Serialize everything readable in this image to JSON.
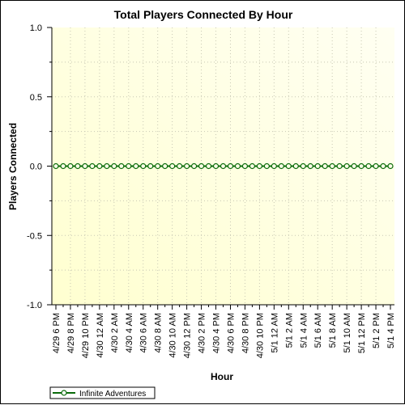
{
  "chart_data": {
    "type": "line",
    "title": "Total Players Connected By Hour",
    "xlabel": "Hour",
    "ylabel": "Players Connected",
    "ylim": [
      -1.0,
      1.0
    ],
    "yticks": [
      "1.0",
      "0.5",
      "0.0",
      "-0.5",
      "-1.0"
    ],
    "ytick_values": [
      1.0,
      0.5,
      0.0,
      -0.5,
      -1.0
    ],
    "x_tick_labels": [
      "4/29 6 PM",
      "4/29 8 PM",
      "4/29 10 PM",
      "4/30 12 AM",
      "4/30 2 AM",
      "4/30 4 AM",
      "4/30 6 AM",
      "4/30 8 AM",
      "4/30 10 AM",
      "4/30 12 PM",
      "4/30 2 PM",
      "4/30 4 PM",
      "4/30 6 PM",
      "4/30 8 PM",
      "4/30 10 PM",
      "5/1 12 AM",
      "5/1 2 AM",
      "5/1 4 AM",
      "5/1 6 AM",
      "5/1 8 AM",
      "5/1 10 AM",
      "5/1 12 PM",
      "5/1 2 PM",
      "5/1 4 PM"
    ],
    "grid": true,
    "legend_position": "bottom-left",
    "background_color": "#ffffd8",
    "series": [
      {
        "name": "Infinite Adventures",
        "color": "#0a6b0a",
        "marker": "circle",
        "x": [
          "4/29 6 PM",
          "4/29 7 PM",
          "4/29 8 PM",
          "4/29 9 PM",
          "4/29 10 PM",
          "4/29 11 PM",
          "4/30 12 AM",
          "4/30 1 AM",
          "4/30 2 AM",
          "4/30 3 AM",
          "4/30 4 AM",
          "4/30 5 AM",
          "4/30 6 AM",
          "4/30 7 AM",
          "4/30 8 AM",
          "4/30 9 AM",
          "4/30 10 AM",
          "4/30 11 AM",
          "4/30 12 PM",
          "4/30 1 PM",
          "4/30 2 PM",
          "4/30 3 PM",
          "4/30 4 PM",
          "4/30 5 PM",
          "4/30 6 PM",
          "4/30 7 PM",
          "4/30 8 PM",
          "4/30 9 PM",
          "4/30 10 PM",
          "4/30 11 PM",
          "5/1 12 AM",
          "5/1 1 AM",
          "5/1 2 AM",
          "5/1 3 AM",
          "5/1 4 AM",
          "5/1 5 AM",
          "5/1 6 AM",
          "5/1 7 AM",
          "5/1 8 AM",
          "5/1 9 AM",
          "5/1 10 AM",
          "5/1 11 AM",
          "5/1 12 PM",
          "5/1 1 PM",
          "5/1 2 PM",
          "5/1 3 PM",
          "5/1 4 PM"
        ],
        "values": [
          0,
          0,
          0,
          0,
          0,
          0,
          0,
          0,
          0,
          0,
          0,
          0,
          0,
          0,
          0,
          0,
          0,
          0,
          0,
          0,
          0,
          0,
          0,
          0,
          0,
          0,
          0,
          0,
          0,
          0,
          0,
          0,
          0,
          0,
          0,
          0,
          0,
          0,
          0,
          0,
          0,
          0,
          0,
          0,
          0,
          0,
          0
        ]
      }
    ]
  }
}
